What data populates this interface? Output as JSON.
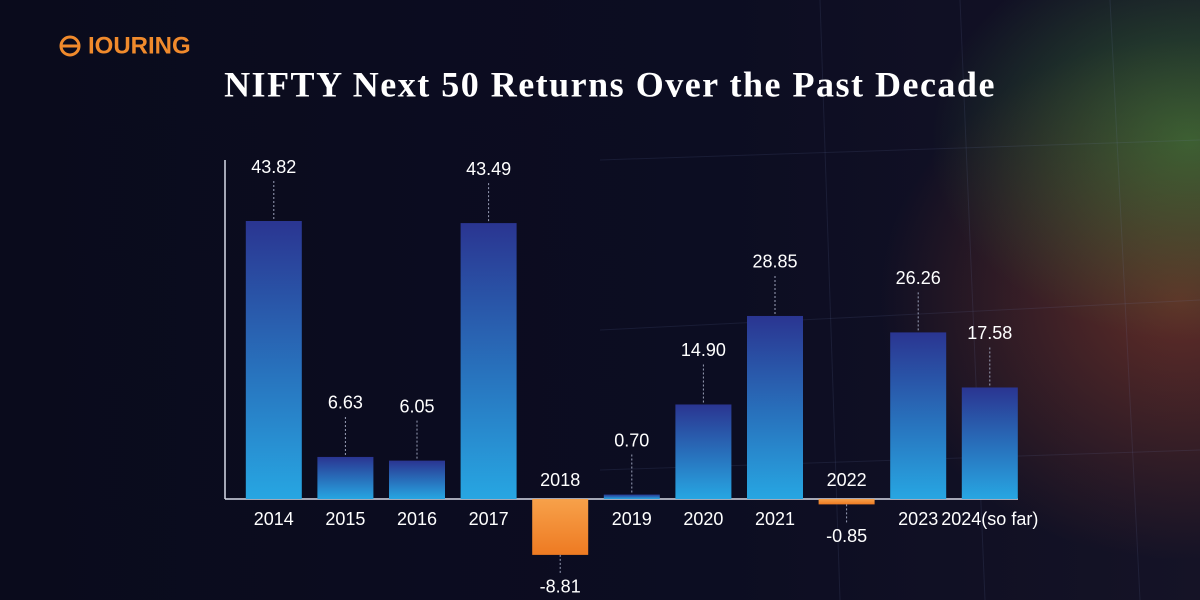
{
  "logo": "IOURING",
  "chart_data": {
    "type": "bar",
    "title": "NIFTY Next 50 Returns Over the Past Decade",
    "categories": [
      "2014",
      "2015",
      "2016",
      "2017",
      "2018",
      "2019",
      "2020",
      "2021",
      "2022",
      "2023",
      "2024(so far)"
    ],
    "values": [
      43.82,
      6.63,
      6.05,
      43.49,
      -8.81,
      0.7,
      14.9,
      28.85,
      -0.85,
      26.26,
      17.58
    ],
    "value_labels": [
      "43.82",
      "6.63",
      "6.05",
      "43.49",
      "-8.81",
      "0.70",
      "14.90",
      "28.85",
      "-0.85",
      "26.26",
      "17.58"
    ],
    "color": "#2a3591",
    "negative_color": "#f08a2c"
  }
}
